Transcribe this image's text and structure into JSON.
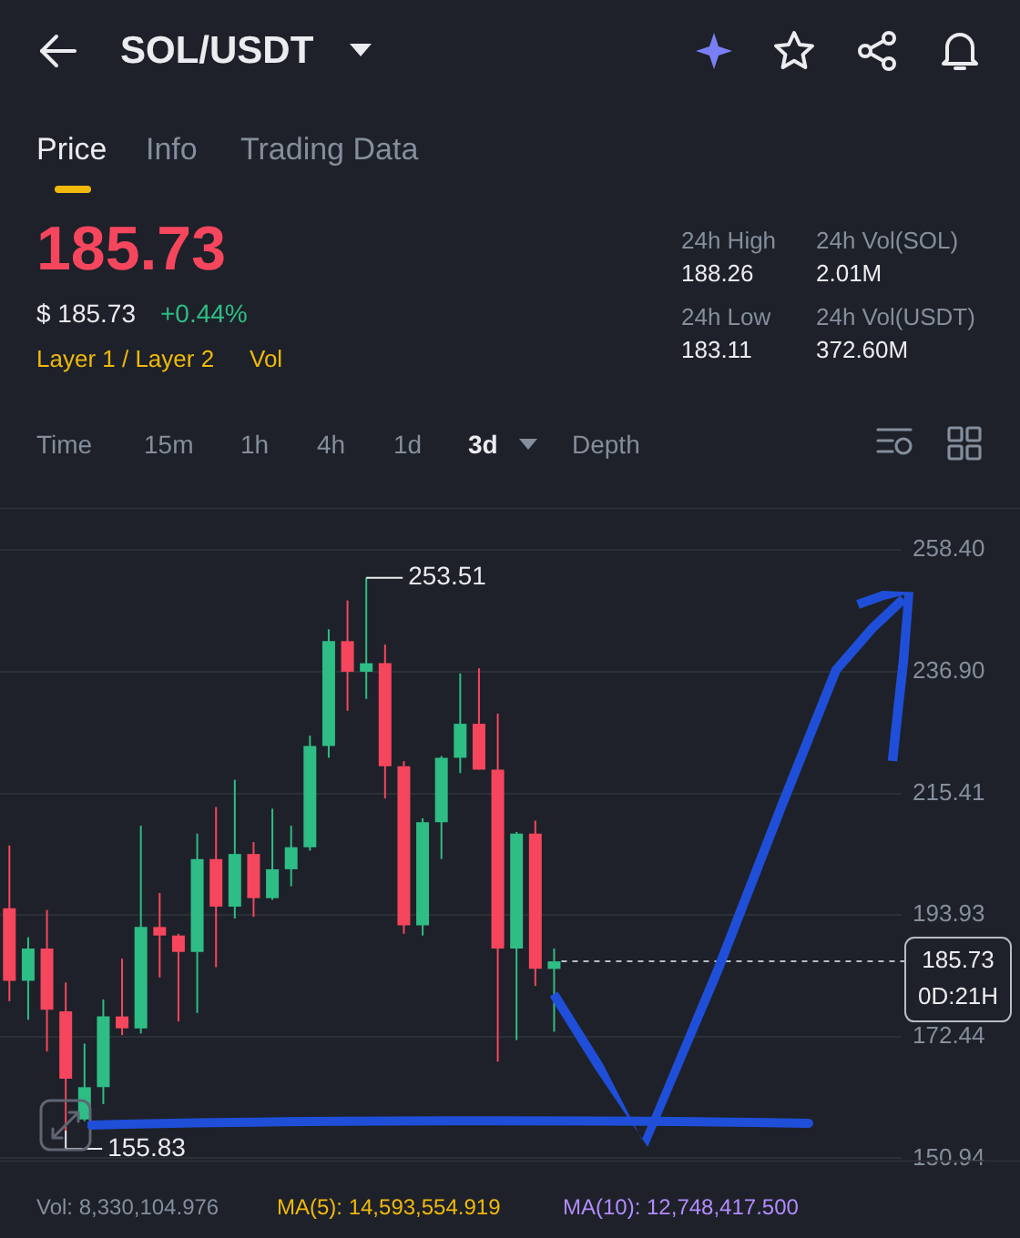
{
  "chart_data": {
    "type": "candlestick",
    "title": "SOL/USDT",
    "categories": [
      null,
      null,
      null,
      null,
      null,
      null,
      null,
      null,
      null,
      null,
      null,
      null,
      null,
      null,
      null,
      null,
      null,
      null,
      null,
      null,
      null,
      null,
      null,
      null,
      null,
      null,
      null,
      null,
      null,
      null,
      null,
      null,
      null,
      null,
      null,
      null,
      null,
      null,
      null,
      null,
      null,
      null,
      null,
      null,
      null,
      null,
      null,
      null
    ],
    "ohlc": [
      [
        195.1,
        206.2,
        178.7,
        182.3
      ],
      [
        182.3,
        190.0,
        175.4,
        188.0
      ],
      [
        188.0,
        194.8,
        169.8,
        177.2
      ],
      [
        176.9,
        182.0,
        155.83,
        165.0
      ],
      [
        157.8,
        171.2,
        157.5,
        163.5
      ],
      [
        163.5,
        179.0,
        160.5,
        176.0
      ],
      [
        176.0,
        186.2,
        172.7,
        173.9
      ],
      [
        173.9,
        209.7,
        173.0,
        191.8
      ],
      [
        191.8,
        197.8,
        182.9,
        190.3
      ],
      [
        190.3,
        190.6,
        175.1,
        187.4
      ],
      [
        187.4,
        208.3,
        176.6,
        203.8
      ],
      [
        203.8,
        213.0,
        184.7,
        195.4
      ],
      [
        195.4,
        217.8,
        193.3,
        204.7
      ],
      [
        204.7,
        206.8,
        193.6,
        196.9
      ],
      [
        196.9,
        212.7,
        196.6,
        202.0
      ],
      [
        202.0,
        209.7,
        199.0,
        205.9
      ],
      [
        205.9,
        225.6,
        205.3,
        223.8
      ],
      [
        223.8,
        244.4,
        221.7,
        242.3
      ],
      [
        242.3,
        249.5,
        230.0,
        236.9
      ],
      [
        236.9,
        253.51,
        232.1,
        238.4
      ],
      [
        238.4,
        241.7,
        214.5,
        220.2
      ],
      [
        220.2,
        221.1,
        190.6,
        192.1
      ],
      [
        192.1,
        211.0,
        190.3,
        210.3
      ],
      [
        210.3,
        222.0,
        203.8,
        221.7
      ],
      [
        221.7,
        236.6,
        219.0,
        227.7
      ],
      [
        227.7,
        237.5,
        219.6,
        219.6
      ],
      [
        219.6,
        229.5,
        168.0,
        188.0
      ],
      [
        188.0,
        208.6,
        171.8,
        208.3
      ],
      [
        208.3,
        210.6,
        181.4,
        184.4
      ],
      [
        184.4,
        188.0,
        173.3,
        185.73
      ],
      null,
      null,
      null,
      null,
      null,
      null,
      null,
      null,
      null,
      null,
      null,
      null,
      null,
      null,
      null,
      null,
      null,
      null
    ],
    "colors": [
      "#f6465d",
      "#2ebd85",
      "#f6465d",
      "#f6465d",
      "#2ebd85",
      "#2ebd85",
      "#f6465d",
      "#2ebd85",
      "#f6465d",
      "#f6465d",
      "#2ebd85",
      "#f6465d",
      "#2ebd85",
      "#f6465d",
      "#2ebd85",
      "#2ebd85",
      "#2ebd85",
      "#2ebd85",
      "#f6465d",
      "#2ebd85",
      "#f6465d",
      "#f6465d",
      "#2ebd85",
      "#2ebd85",
      "#2ebd85",
      "#f6465d",
      "#f6465d",
      "#2ebd85",
      "#f6465d",
      "#2ebd85",
      null,
      null,
      null,
      null,
      null,
      null,
      null,
      null,
      null,
      null,
      null,
      null,
      null,
      null,
      null,
      null,
      null,
      null
    ],
    "ylim": [
      150.3,
      265.9
    ],
    "yticks": [
      {
        "value": 258.4,
        "label": "258.40"
      },
      {
        "value": 236.9,
        "label": "236.90"
      },
      215.41,
      193.93,
      172.44,
      150.94
    ],
    "tick_labels": "y",
    "grid": "y",
    "ref_lines": [
      {
        "axis": "y",
        "value": 185.73,
        "label": "185.73",
        "line_style": "dashed",
        "color": "#b7bdc6"
      }
    ],
    "annotations": [
      "Price",
      "Info",
      "Trading Data",
      "185.73",
      "$ 185.73",
      "+0.44%",
      "Layer 1 / Layer 2",
      "Vol",
      "24h High",
      "188.26",
      "24h Low",
      "183.11",
      "24h Vol(SOL)",
      "2.01M",
      "24h Vol(USDT)",
      "372.60M",
      "Time",
      "15m",
      "1h",
      "4h",
      "1d",
      "3d",
      "Depth",
      "0D:21H",
      "Vol: 8,330,104.976",
      "MA(5): 14,593,554.919",
      "MA(10): 12,748,417.500",
      "253.51",
      "155.83"
    ]
  }
}
